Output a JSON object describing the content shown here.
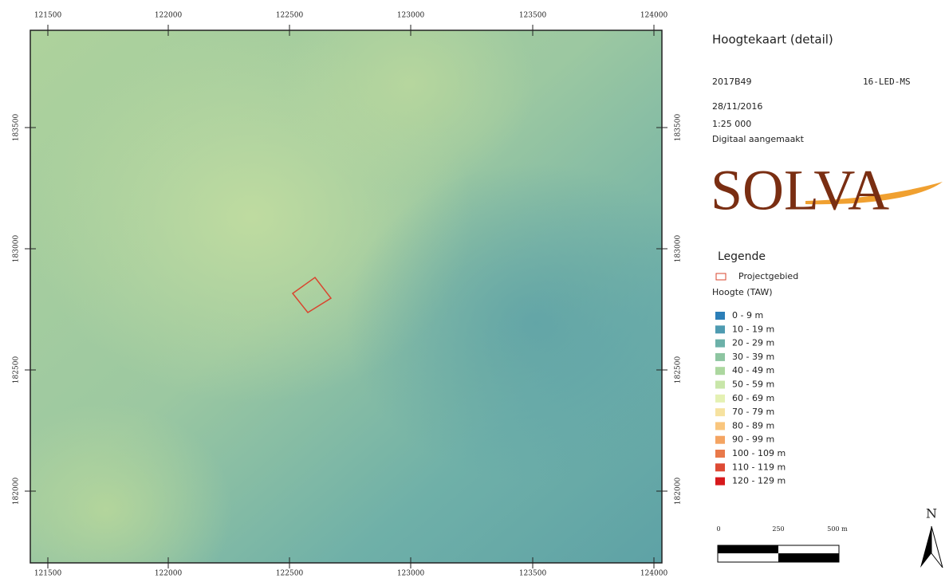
{
  "map": {
    "x_labels": [
      "121500",
      "122000",
      "122500",
      "123000",
      "123500",
      "124000"
    ],
    "y_labels": [
      "183500",
      "183000",
      "182500",
      "182000"
    ]
  },
  "panel": {
    "title": "Hoogtekaart (detail)",
    "code": "2017B49",
    "reference": "16-LED-MS",
    "date": "28/11/2016",
    "scale": "1:25 000",
    "note": "Digitaal aangemaakt",
    "logo": "SOLVA",
    "legend_title": "Legende",
    "project_label": "Projectgebied",
    "height_title": "Hoogte (TAW)",
    "classes": [
      {
        "label": "0 - 9 m",
        "color": "#2c7fb8"
      },
      {
        "label": "10 - 19 m",
        "color": "#4e9bb1"
      },
      {
        "label": "20 - 29 m",
        "color": "#6cb1a9"
      },
      {
        "label": "30 - 39 m",
        "color": "#8dc5a1"
      },
      {
        "label": "40 - 49 m",
        "color": "#acd79f"
      },
      {
        "label": "50 - 59 m",
        "color": "#c8e6a9"
      },
      {
        "label": "60 - 69 m",
        "color": "#e4f1b3"
      },
      {
        "label": "70 - 79 m",
        "color": "#f6e2a0"
      },
      {
        "label": "80 - 89 m",
        "color": "#f9c67e"
      },
      {
        "label": "90 - 99 m",
        "color": "#f4a462"
      },
      {
        "label": "100 - 109 m",
        "color": "#e9794a"
      },
      {
        "label": "110 - 119 m",
        "color": "#dd4a34"
      },
      {
        "label": "120 - 129 m",
        "color": "#d7191c"
      }
    ],
    "scalebar": [
      "0",
      "250",
      "500 m"
    ],
    "north": "N"
  }
}
